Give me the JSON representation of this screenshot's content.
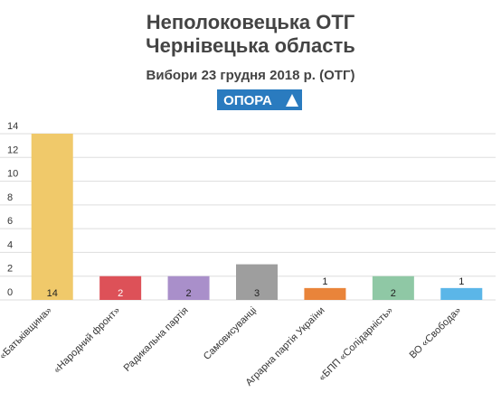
{
  "chart_data": {
    "type": "bar",
    "title": [
      "Неполоковецька ОТГ",
      "Чернівецька область"
    ],
    "subtitle": "Вибори 23 грудня 2018 р. (ОТГ)",
    "logo": "ОПОРА",
    "categories": [
      "«Батьківщина»",
      "«Народний фронт»",
      "Радикальна партія",
      "Самовисуванці",
      "Аграрна партія України",
      "«БПП «Солідарність»",
      "ВО «Свобода»"
    ],
    "values": [
      14,
      2,
      2,
      3,
      1,
      2,
      1
    ],
    "colors": [
      "#f0c96a",
      "#dd5158",
      "#a98fca",
      "#9e9e9e",
      "#e9843a",
      "#8fc8a5",
      "#5bb6e8"
    ],
    "ylim": [
      0,
      14
    ],
    "yticks": [
      0,
      2,
      4,
      6,
      8,
      10,
      12,
      14
    ],
    "grid": true
  }
}
